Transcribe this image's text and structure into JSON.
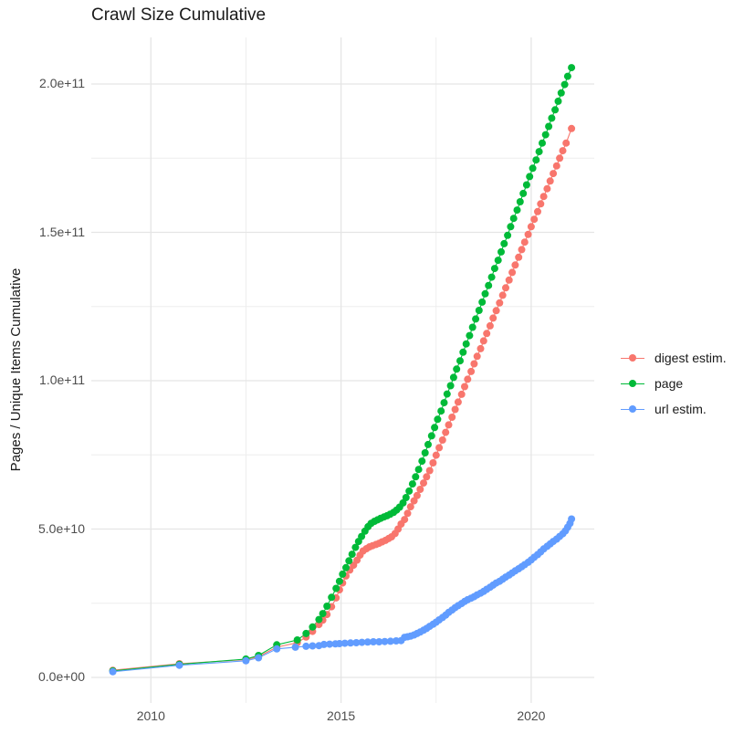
{
  "title": "Crawl Size Cumulative",
  "axes": {
    "y": {
      "label": "Pages / Unique Items Cumulative",
      "ticks": [
        {
          "label": "0.0e+00",
          "value": 0
        },
        {
          "label": "5.0e+10",
          "value": 50
        },
        {
          "label": "1.0e+11",
          "value": 100
        },
        {
          "label": "1.5e+11",
          "value": 150
        },
        {
          "label": "2.0e+11",
          "value": 200
        }
      ],
      "minor_values": [
        25,
        75,
        125,
        175
      ]
    },
    "x": {
      "ticks": [
        {
          "label": "2010",
          "value": 2010
        },
        {
          "label": "2015",
          "value": 2015
        },
        {
          "label": "2020",
          "value": 2020
        }
      ],
      "minor_values": [
        2012.5,
        2017.5
      ]
    }
  },
  "legend": {
    "position": "right"
  },
  "chart_data": {
    "type": "line",
    "title": "Crawl Size Cumulative",
    "xlabel": "",
    "ylabel": "Pages / Unique Items Cumulative",
    "x_unit": "decimal year",
    "y_unit": "billions of pages / unique items (1e9)",
    "xlim": [
      2008.4,
      2021.7
    ],
    "ylim_billions": [
      -9,
      217
    ],
    "grid": "on",
    "legend_position": "right",
    "marker": "point-with-line",
    "series": [
      {
        "name": "digest estim.",
        "color": "#F8766D",
        "points": [
          [
            2009.0,
            2.4
          ],
          [
            2010.75,
            4.6
          ],
          [
            2012.5,
            6.0
          ],
          [
            2012.83,
            7.0
          ],
          [
            2013.31,
            10.2
          ],
          [
            2013.85,
            11.7
          ],
          [
            2014.08,
            13.6
          ],
          [
            2014.25,
            15.5
          ],
          [
            2014.42,
            17.8
          ],
          [
            2014.52,
            19.3
          ],
          [
            2014.63,
            21.2
          ],
          [
            2014.75,
            23.8
          ],
          [
            2014.87,
            26.8
          ],
          [
            2014.96,
            29.5
          ],
          [
            2015.04,
            31.8
          ],
          [
            2015.13,
            34.2
          ],
          [
            2015.23,
            36.2
          ],
          [
            2015.33,
            37.8
          ],
          [
            2015.42,
            39.5
          ],
          [
            2015.5,
            41.2
          ],
          [
            2015.58,
            42.6
          ],
          [
            2015.67,
            43.4
          ],
          [
            2015.75,
            44.0
          ],
          [
            2015.83,
            44.4
          ],
          [
            2015.92,
            44.8
          ],
          [
            2016.0,
            45.2
          ],
          [
            2016.08,
            45.7
          ],
          [
            2016.17,
            46.2
          ],
          [
            2016.25,
            46.8
          ],
          [
            2016.33,
            47.4
          ],
          [
            2016.42,
            48.5
          ],
          [
            2016.5,
            50.0
          ],
          [
            2016.58,
            51.7
          ],
          [
            2016.67,
            53.2
          ],
          [
            2016.75,
            55.3
          ],
          [
            2016.83,
            57.5
          ],
          [
            2016.92,
            59.5
          ],
          [
            2017.0,
            61.3
          ],
          [
            2017.08,
            63.4
          ],
          [
            2017.17,
            65.5
          ],
          [
            2017.25,
            67.6
          ],
          [
            2017.33,
            69.7
          ],
          [
            2017.42,
            72.3
          ],
          [
            2017.5,
            74.9
          ],
          [
            2017.58,
            77.4
          ],
          [
            2017.67,
            80.0
          ],
          [
            2017.75,
            82.6
          ],
          [
            2017.83,
            85.1
          ],
          [
            2017.92,
            87.7
          ],
          [
            2018.0,
            90.3
          ],
          [
            2018.08,
            92.8
          ],
          [
            2018.17,
            95.4
          ],
          [
            2018.25,
            98.0
          ],
          [
            2018.33,
            100.5
          ],
          [
            2018.42,
            103.1
          ],
          [
            2018.5,
            105.7
          ],
          [
            2018.58,
            108.2
          ],
          [
            2018.67,
            110.8
          ],
          [
            2018.75,
            113.4
          ],
          [
            2018.83,
            115.9
          ],
          [
            2018.92,
            118.5
          ],
          [
            2019.0,
            121.1
          ],
          [
            2019.08,
            123.6
          ],
          [
            2019.17,
            126.2
          ],
          [
            2019.25,
            128.8
          ],
          [
            2019.33,
            131.3
          ],
          [
            2019.42,
            133.9
          ],
          [
            2019.5,
            136.5
          ],
          [
            2019.58,
            139.0
          ],
          [
            2019.67,
            141.6
          ],
          [
            2019.75,
            144.2
          ],
          [
            2019.83,
            146.7
          ],
          [
            2019.92,
            149.3
          ],
          [
            2020.0,
            151.9
          ],
          [
            2020.08,
            154.4
          ],
          [
            2020.17,
            157.0
          ],
          [
            2020.25,
            159.6
          ],
          [
            2020.33,
            162.1
          ],
          [
            2020.42,
            164.7
          ],
          [
            2020.5,
            167.3
          ],
          [
            2020.58,
            169.8
          ],
          [
            2020.67,
            172.4
          ],
          [
            2020.75,
            175.0
          ],
          [
            2020.83,
            177.5
          ],
          [
            2020.92,
            180.1
          ],
          [
            2021.06,
            185.0
          ]
        ]
      },
      {
        "name": "page",
        "color": "#00BA38",
        "points": [
          [
            2009.0,
            2.2
          ],
          [
            2010.75,
            4.4
          ],
          [
            2012.5,
            6.2
          ],
          [
            2012.83,
            7.4
          ],
          [
            2013.31,
            11.0
          ],
          [
            2013.85,
            12.6
          ],
          [
            2014.08,
            14.8
          ],
          [
            2014.25,
            17.0
          ],
          [
            2014.42,
            19.5
          ],
          [
            2014.52,
            21.5
          ],
          [
            2014.63,
            24.0
          ],
          [
            2014.75,
            27.0
          ],
          [
            2014.87,
            30.0
          ],
          [
            2014.96,
            32.4
          ],
          [
            2015.04,
            34.8
          ],
          [
            2015.13,
            37.0
          ],
          [
            2015.21,
            39.3
          ],
          [
            2015.29,
            41.5
          ],
          [
            2015.38,
            43.8
          ],
          [
            2015.46,
            45.8
          ],
          [
            2015.54,
            47.5
          ],
          [
            2015.63,
            49.3
          ],
          [
            2015.71,
            50.8
          ],
          [
            2015.79,
            51.9
          ],
          [
            2015.88,
            52.6
          ],
          [
            2015.96,
            53.1
          ],
          [
            2016.04,
            53.6
          ],
          [
            2016.13,
            54.1
          ],
          [
            2016.21,
            54.5
          ],
          [
            2016.29,
            55.0
          ],
          [
            2016.38,
            55.6
          ],
          [
            2016.46,
            56.4
          ],
          [
            2016.54,
            57.4
          ],
          [
            2016.63,
            58.8
          ],
          [
            2016.71,
            60.6
          ],
          [
            2016.79,
            62.8
          ],
          [
            2016.88,
            65.2
          ],
          [
            2016.96,
            67.6
          ],
          [
            2017.04,
            70.1
          ],
          [
            2017.13,
            72.9
          ],
          [
            2017.21,
            75.7
          ],
          [
            2017.29,
            78.5
          ],
          [
            2017.38,
            81.4
          ],
          [
            2017.46,
            84.2
          ],
          [
            2017.54,
            87.0
          ],
          [
            2017.63,
            89.8
          ],
          [
            2017.71,
            92.6
          ],
          [
            2017.79,
            95.5
          ],
          [
            2017.88,
            98.3
          ],
          [
            2017.96,
            101.1
          ],
          [
            2018.04,
            103.9
          ],
          [
            2018.13,
            106.7
          ],
          [
            2018.21,
            109.6
          ],
          [
            2018.29,
            112.4
          ],
          [
            2018.38,
            115.2
          ],
          [
            2018.46,
            118.0
          ],
          [
            2018.54,
            120.8
          ],
          [
            2018.63,
            123.7
          ],
          [
            2018.71,
            126.5
          ],
          [
            2018.79,
            129.3
          ],
          [
            2018.88,
            132.1
          ],
          [
            2018.96,
            134.9
          ],
          [
            2019.04,
            137.8
          ],
          [
            2019.13,
            140.6
          ],
          [
            2019.21,
            143.4
          ],
          [
            2019.29,
            146.2
          ],
          [
            2019.38,
            149.0
          ],
          [
            2019.46,
            151.9
          ],
          [
            2019.54,
            154.7
          ],
          [
            2019.63,
            157.5
          ],
          [
            2019.71,
            160.3
          ],
          [
            2019.79,
            163.1
          ],
          [
            2019.88,
            166.0
          ],
          [
            2019.96,
            168.8
          ],
          [
            2020.04,
            171.6
          ],
          [
            2020.13,
            174.4
          ],
          [
            2020.21,
            177.2
          ],
          [
            2020.29,
            180.1
          ],
          [
            2020.38,
            182.9
          ],
          [
            2020.46,
            185.7
          ],
          [
            2020.54,
            188.5
          ],
          [
            2020.63,
            191.3
          ],
          [
            2020.71,
            194.2
          ],
          [
            2020.79,
            197.0
          ],
          [
            2020.88,
            199.8
          ],
          [
            2020.96,
            202.6
          ],
          [
            2021.06,
            205.5
          ]
        ]
      },
      {
        "name": "url estim.",
        "color": "#619CFF",
        "points": [
          [
            2009.0,
            1.9
          ],
          [
            2010.75,
            4.1
          ],
          [
            2012.5,
            5.6
          ],
          [
            2012.83,
            6.6
          ],
          [
            2013.31,
            9.6
          ],
          [
            2013.8,
            10.2
          ],
          [
            2014.08,
            10.5
          ],
          [
            2014.25,
            10.6
          ],
          [
            2014.42,
            10.7
          ],
          [
            2014.55,
            11.1
          ],
          [
            2014.7,
            11.2
          ],
          [
            2014.85,
            11.3
          ],
          [
            2014.96,
            11.4
          ],
          [
            2015.1,
            11.5
          ],
          [
            2015.25,
            11.6
          ],
          [
            2015.4,
            11.7
          ],
          [
            2015.55,
            11.8
          ],
          [
            2015.7,
            11.9
          ],
          [
            2015.85,
            12.0
          ],
          [
            2016.0,
            12.0
          ],
          [
            2016.15,
            12.1
          ],
          [
            2016.3,
            12.2
          ],
          [
            2016.45,
            12.3
          ],
          [
            2016.58,
            12.4
          ],
          [
            2016.67,
            13.5
          ],
          [
            2016.75,
            13.7
          ],
          [
            2016.83,
            13.9
          ],
          [
            2016.92,
            14.3
          ],
          [
            2017.0,
            14.8
          ],
          [
            2017.08,
            15.3
          ],
          [
            2017.17,
            15.9
          ],
          [
            2017.25,
            16.5
          ],
          [
            2017.33,
            17.2
          ],
          [
            2017.42,
            17.9
          ],
          [
            2017.5,
            18.6
          ],
          [
            2017.58,
            19.4
          ],
          [
            2017.67,
            20.2
          ],
          [
            2017.75,
            21.0
          ],
          [
            2017.83,
            21.9
          ],
          [
            2017.92,
            22.7
          ],
          [
            2018.0,
            23.5
          ],
          [
            2018.08,
            24.2
          ],
          [
            2018.17,
            24.9
          ],
          [
            2018.25,
            25.6
          ],
          [
            2018.33,
            26.2
          ],
          [
            2018.42,
            26.7
          ],
          [
            2018.5,
            27.2
          ],
          [
            2018.58,
            27.8
          ],
          [
            2018.67,
            28.4
          ],
          [
            2018.75,
            29.0
          ],
          [
            2018.83,
            29.7
          ],
          [
            2018.92,
            30.4
          ],
          [
            2019.0,
            31.1
          ],
          [
            2019.08,
            31.8
          ],
          [
            2019.17,
            32.4
          ],
          [
            2019.25,
            33.1
          ],
          [
            2019.33,
            33.8
          ],
          [
            2019.42,
            34.5
          ],
          [
            2019.5,
            35.2
          ],
          [
            2019.58,
            35.9
          ],
          [
            2019.67,
            36.6
          ],
          [
            2019.75,
            37.3
          ],
          [
            2019.83,
            38.0
          ],
          [
            2019.92,
            38.8
          ],
          [
            2020.0,
            39.6
          ],
          [
            2020.08,
            40.5
          ],
          [
            2020.17,
            41.4
          ],
          [
            2020.25,
            42.3
          ],
          [
            2020.33,
            43.3
          ],
          [
            2020.42,
            44.2
          ],
          [
            2020.5,
            45.0
          ],
          [
            2020.58,
            45.8
          ],
          [
            2020.67,
            46.6
          ],
          [
            2020.75,
            47.5
          ],
          [
            2020.83,
            48.4
          ],
          [
            2020.9,
            49.4
          ],
          [
            2020.96,
            50.6
          ],
          [
            2021.02,
            51.9
          ],
          [
            2021.06,
            53.4
          ]
        ]
      }
    ],
    "colors": {
      "digest_estim": "#F8766D",
      "page": "#00BA38",
      "url_estim": "#619CFF",
      "grid_major": "#E5E5E5",
      "grid_minor": "#EDEDED",
      "axis_text": "#4d4d4d",
      "title_text": "#1a1a1a"
    }
  }
}
